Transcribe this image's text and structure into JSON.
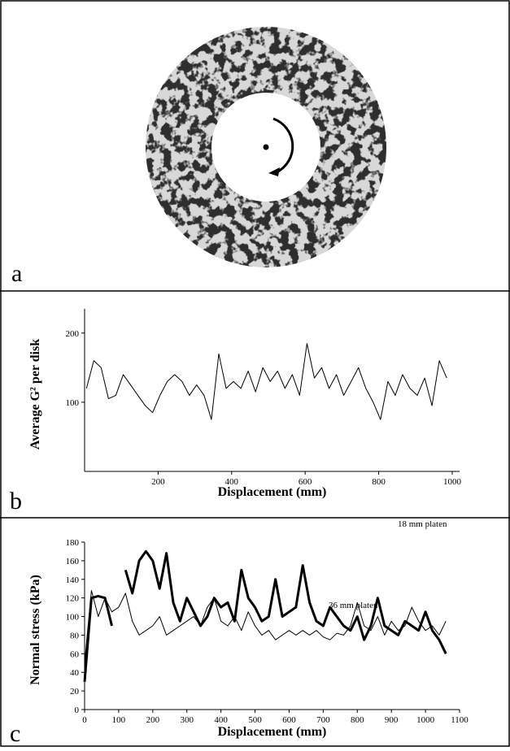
{
  "image_panel": {
    "label": "a"
  },
  "chart_data": [
    {
      "type": "line",
      "panel_label": "b",
      "xlabel": "Displacement (mm)",
      "ylabel": "Average G² per disk",
      "color": "#000000",
      "x": [
        5,
        25,
        45,
        65,
        85,
        105,
        125,
        145,
        165,
        185,
        205,
        225,
        245,
        265,
        285,
        305,
        325,
        345,
        365,
        385,
        405,
        425,
        445,
        465,
        485,
        505,
        525,
        545,
        565,
        585,
        605,
        625,
        645,
        665,
        685,
        705,
        725,
        745,
        765,
        785,
        805,
        825,
        845,
        865,
        885,
        905,
        925,
        945,
        965,
        985
      ],
      "values": [
        120,
        160,
        150,
        105,
        110,
        140,
        125,
        110,
        95,
        85,
        110,
        130,
        140,
        130,
        110,
        125,
        110,
        75,
        170,
        120,
        130,
        120,
        145,
        115,
        150,
        130,
        145,
        120,
        140,
        110,
        185,
        135,
        150,
        120,
        140,
        110,
        130,
        150,
        120,
        100,
        75,
        130,
        110,
        140,
        120,
        110,
        135,
        95,
        160,
        135
      ],
      "xlim": [
        0,
        1020
      ],
      "xticks": [
        200,
        400,
        600,
        800,
        1000
      ],
      "ylim": [
        0,
        235
      ],
      "yticks": [
        100,
        200
      ]
    },
    {
      "type": "line",
      "panel_label": "c",
      "xlabel": "Displacement (mm)",
      "ylabel": "Normal stress (kPa)",
      "x": [
        0,
        20,
        40,
        60,
        80,
        100,
        120,
        140,
        160,
        180,
        200,
        220,
        240,
        260,
        280,
        300,
        320,
        340,
        360,
        380,
        400,
        420,
        440,
        460,
        480,
        500,
        520,
        540,
        560,
        580,
        600,
        620,
        640,
        660,
        680,
        700,
        720,
        740,
        760,
        780,
        800,
        820,
        840,
        860,
        880,
        900,
        920,
        940,
        960,
        980,
        1000,
        1020,
        1040,
        1060
      ],
      "series": [
        {
          "name": "18 mm platen",
          "color": "#000000",
          "width": 3,
          "values": [
            30,
            120,
            122,
            120,
            90,
            null,
            150,
            125,
            160,
            170,
            160,
            130,
            168,
            115,
            95,
            120,
            105,
            90,
            100,
            120,
            110,
            115,
            95,
            150,
            120,
            110,
            95,
            100,
            140,
            100,
            105,
            110,
            155,
            115,
            95,
            90,
            110,
            100,
            90,
            85,
            100,
            75,
            90,
            120,
            90,
            85,
            80,
            95,
            90,
            85,
            105,
            85,
            75,
            60
          ]
        },
        {
          "name": "36 mm platen",
          "color": "#000000",
          "width": 1,
          "values": [
            50,
            128,
            100,
            120,
            105,
            110,
            125,
            95,
            80,
            85,
            90,
            100,
            80,
            85,
            90,
            95,
            100,
            90,
            110,
            120,
            95,
            90,
            100,
            85,
            105,
            90,
            80,
            85,
            75,
            80,
            85,
            80,
            85,
            80,
            85,
            78,
            75,
            82,
            80,
            90,
            115,
            90,
            85,
            100,
            80,
            95,
            85,
            90,
            110,
            95,
            85,
            90,
            80,
            95
          ]
        }
      ],
      "xlim": [
        0,
        1100
      ],
      "xticks": [
        0,
        100,
        200,
        300,
        400,
        500,
        600,
        700,
        800,
        900,
        1000,
        1100
      ],
      "ylim": [
        0,
        180
      ],
      "yticks": [
        0,
        20,
        40,
        60,
        80,
        100,
        120,
        140,
        160,
        180
      ]
    }
  ]
}
